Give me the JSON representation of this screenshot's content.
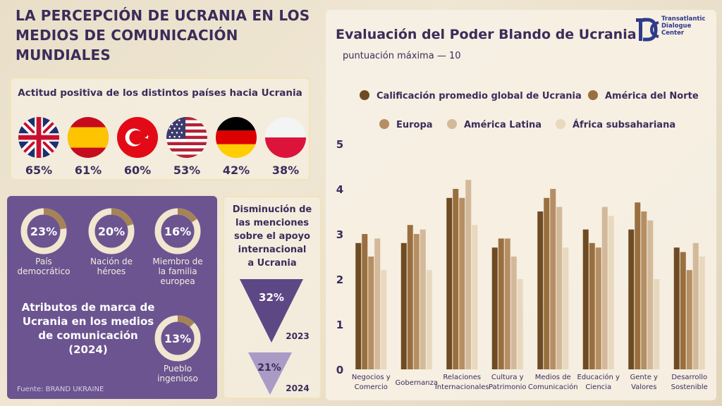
{
  "header": {
    "title_line1": "LA PERCEPCIÓN DE UCRANIA EN LOS",
    "title_line2": "MEDIOS DE COMUNICACIÓN MUNDIALES"
  },
  "attitude": {
    "title": "Actitud positiva de los distintos países hacia Ucrania",
    "countries": [
      {
        "flag": "uk-flag-icon",
        "value": "65%"
      },
      {
        "flag": "spain-flag-icon",
        "value": "61%"
      },
      {
        "flag": "turkey-flag-icon",
        "value": "60%"
      },
      {
        "flag": "usa-flag-icon",
        "value": "53%"
      },
      {
        "flag": "germany-flag-icon",
        "value": "42%"
      },
      {
        "flag": "poland-flag-icon",
        "value": "38%"
      }
    ]
  },
  "brand_attributes": {
    "title_line1": "Atributos de marca de",
    "title_line2": "Ucrania en los medios",
    "title_line3": "de comunicación",
    "title_line4": "(2024)",
    "items": [
      {
        "value": "23%",
        "fraction": 0.23,
        "label_line1": "País",
        "label_line2": "democrático",
        "label_line3": ""
      },
      {
        "value": "20%",
        "fraction": 0.2,
        "label_line1": "Nación de",
        "label_line2": "héroes",
        "label_line3": ""
      },
      {
        "value": "16%",
        "fraction": 0.16,
        "label_line1": "Miembro de",
        "label_line2": "la familia",
        "label_line3": "europea"
      },
      {
        "value": "13%",
        "fraction": 0.13,
        "label_line1": "Pueblo",
        "label_line2": "ingenioso",
        "label_line3": ""
      }
    ],
    "source": "Fuente: BRAND UKRAINE"
  },
  "decline": {
    "title_line1": "Disminución de",
    "title_line2": "las menciones",
    "title_line3": "sobre el apoyo",
    "title_line4": "internacional",
    "title_line5": "a Ucrania",
    "items": [
      {
        "value": "32%",
        "year": "2023"
      },
      {
        "value": "21%",
        "year": "2024"
      }
    ]
  },
  "logo": {
    "line1": "Transatlantic",
    "line2": "Dialogue",
    "line3": "Center"
  },
  "colors": {
    "purple": "#6b5490",
    "dark_text": "#3b2c5a",
    "ring_accent": "#a68356",
    "ring_track": "#f1e6cf"
  },
  "chart_data": {
    "type": "bar",
    "title": "Evaluación del Poder Blando de Ucrania",
    "subtitle": "puntuación máxima — 10",
    "ylim": [
      0,
      5
    ],
    "yticks": [
      "0",
      "1",
      "2",
      "3",
      "4",
      "5"
    ],
    "categories": [
      [
        "Negocios y",
        "Comercio"
      ],
      [
        "Gobernanza",
        ""
      ],
      [
        "Relaciones",
        "Internacionales"
      ],
      [
        "Cultura y",
        "Patrimonio"
      ],
      [
        "Medios de",
        "Comunicación"
      ],
      [
        "Educación y",
        "Ciencia"
      ],
      [
        "Gente y",
        "Valores"
      ],
      [
        "Desarrollo",
        "Sostenible"
      ]
    ],
    "series": [
      {
        "name": "Calificación promedio global de Ucrania",
        "color": "#6e4b22",
        "values": [
          2.8,
          2.8,
          3.8,
          2.7,
          3.5,
          3.1,
          3.1,
          2.7
        ]
      },
      {
        "name": "América del Norte",
        "color": "#9a6f3f",
        "values": [
          3.0,
          3.2,
          4.0,
          2.9,
          3.8,
          2.8,
          3.7,
          2.6
        ]
      },
      {
        "name": "Europa",
        "color": "#b58e63",
        "values": [
          2.5,
          3.0,
          3.8,
          2.9,
          4.0,
          2.7,
          3.5,
          2.2
        ]
      },
      {
        "name": "América Latina",
        "color": "#d3b99a",
        "values": [
          2.9,
          3.1,
          4.2,
          2.5,
          3.6,
          3.6,
          3.3,
          2.8
        ]
      },
      {
        "name": "África subsahariana",
        "color": "#e8d8bd",
        "values": [
          2.2,
          2.2,
          3.2,
          2.0,
          2.7,
          3.4,
          2.0,
          2.5
        ]
      }
    ]
  }
}
